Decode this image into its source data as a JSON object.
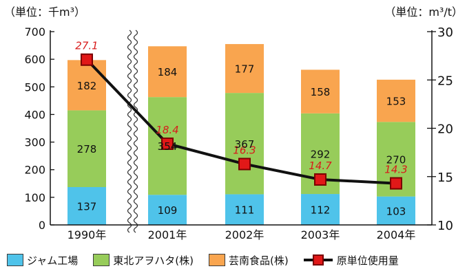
{
  "chart_data": {
    "type": "bar",
    "stacked": true,
    "categories": [
      "1990年",
      "2001年",
      "2002年",
      "2003年",
      "2004年"
    ],
    "left_axis": {
      "unit_label": "（単位：千m³）",
      "range": [
        0,
        700
      ],
      "ticks": [
        "0",
        "100",
        "200",
        "300",
        "400",
        "500",
        "600",
        "700"
      ]
    },
    "right_axis": {
      "unit_label": "（単位：m³/t）",
      "range": [
        10,
        30
      ],
      "ticks": [
        "10",
        "15",
        "20",
        "25",
        "30"
      ]
    },
    "series": [
      {
        "name": "ジャム工場",
        "color": "#4fc3ea",
        "values": [
          137,
          109,
          111,
          112,
          103
        ]
      },
      {
        "name": "東北アヲハタ(株)",
        "color": "#97cc5a",
        "values": [
          278,
          354,
          367,
          292,
          270
        ]
      },
      {
        "name": "芸南食品(株)",
        "color": "#f9a54f",
        "values": [
          182,
          184,
          177,
          158,
          153
        ]
      }
    ],
    "line_series": {
      "name": "原単位使用量",
      "axis": "right",
      "color": "#111111",
      "marker_color": "#e11818",
      "values": [
        27.1,
        18.4,
        16.3,
        14.7,
        14.3
      ]
    },
    "axis_break_between": [
      "1990年",
      "2001年"
    ],
    "grid": false,
    "legend_position": "bottom"
  }
}
